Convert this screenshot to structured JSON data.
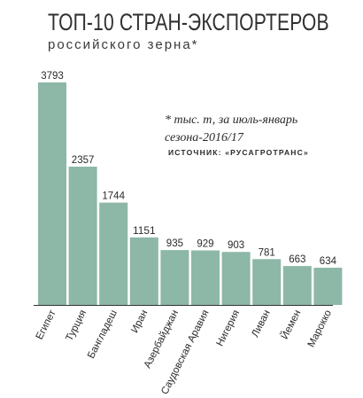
{
  "header": {
    "title": "ТОП-10 СТРАН-ЭКСПОРТЕРОВ",
    "subtitle": "российского зерна*"
  },
  "note": {
    "line1": "* тыс. т, за июль-январь",
    "line2": "сезона-2016/17"
  },
  "source": "ИСТОЧНИК: «РУСАГРОТРАНС»",
  "colors": {
    "bar": "#8db7a7",
    "text": "#2a2a2a",
    "axis": "#333333"
  },
  "chart_data": {
    "type": "bar",
    "title": "ТОП-10 СТРАН-ЭКСПОРТЕРОВ",
    "subtitle": "российского зерна*",
    "categories": [
      "Египет",
      "Турция",
      "Бангладеш",
      "Иран",
      "Азербайджан",
      "Саудовская Аравия",
      "Нигерия",
      "Ливан",
      "Йемен",
      "Марокко"
    ],
    "values": [
      3793,
      2357,
      1744,
      1151,
      935,
      929,
      903,
      781,
      663,
      634
    ],
    "data_labels": [
      "3793",
      "2357",
      "1744",
      "1151",
      "935",
      "929",
      "903",
      "781",
      "663",
      "634"
    ],
    "ylim": [
      0,
      3793
    ],
    "grid": false,
    "legend": "none"
  }
}
